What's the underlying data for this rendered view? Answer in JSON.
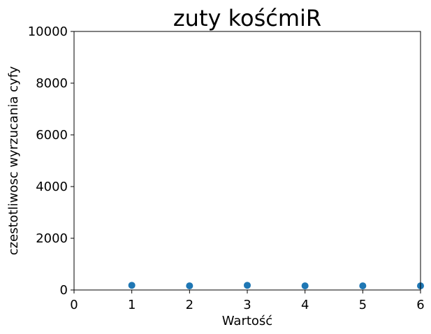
{
  "chart_data": {
    "type": "scatter",
    "title": "zuty kośćmiR",
    "xlabel": "Wartość",
    "ylabel": "czestotliwosc wyrzucania cyfy",
    "xlim": [
      0,
      6
    ],
    "ylim": [
      0,
      10000
    ],
    "xticks": [
      "0",
      "1",
      "2",
      "3",
      "4",
      "5",
      "6"
    ],
    "yticks": [
      "0",
      "2000",
      "4000",
      "6000",
      "8000",
      "10000"
    ],
    "x": [
      1,
      2,
      3,
      4,
      5,
      6
    ],
    "y": [
      180,
      160,
      180,
      160,
      160,
      160
    ],
    "grid": false,
    "legend": "none",
    "marker_color": "#1f77b4"
  }
}
